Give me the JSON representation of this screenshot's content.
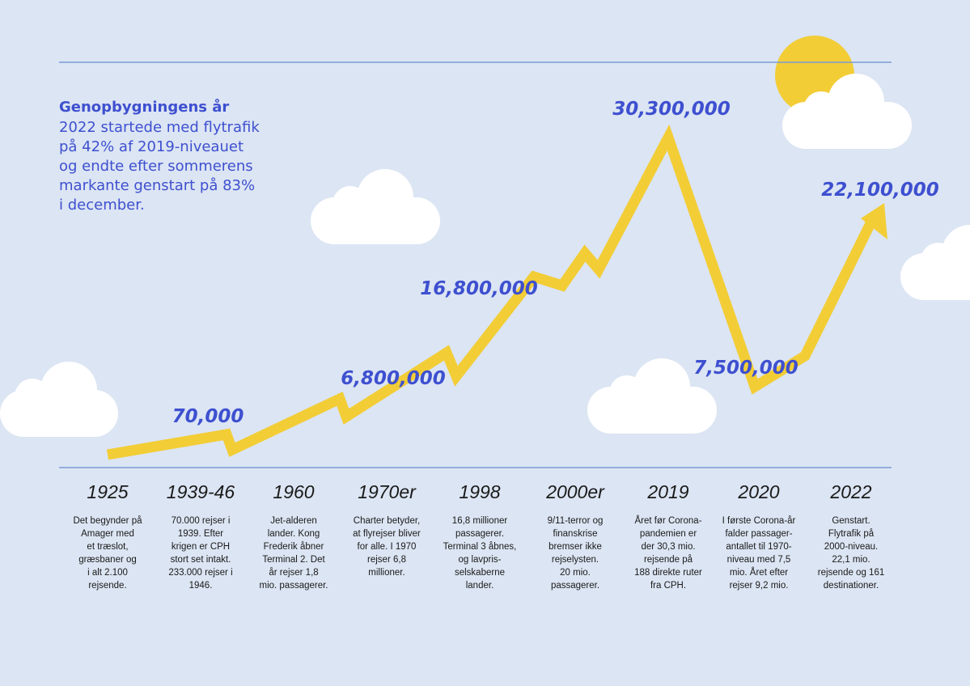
{
  "intro": {
    "title": "Genopbygningens år",
    "lines": [
      "2022 startede med flytrafik",
      "på 42% af 2019-niveauet",
      "og endte efter sommerens",
      "markante genstart på 83%",
      "i december."
    ]
  },
  "milestones": [
    {
      "year": "1925",
      "description": [
        "Det begynder på",
        "Amager med",
        "et træslot,",
        "græsbaner og",
        "i alt 2.100",
        "rejsende."
      ]
    },
    {
      "year": "1939-46",
      "passengers": "70,000",
      "description": [
        "70.000 rejser i",
        "1939. Efter",
        "krigen er CPH",
        "stort set intakt.",
        "233.000 rejser i",
        "1946."
      ]
    },
    {
      "year": "1960",
      "description": [
        "Jet-alderen",
        "lander. Kong",
        "Frederik åbner",
        "Terminal 2. Det",
        "år rejser 1,8",
        "mio. passagerer."
      ]
    },
    {
      "year": "1970er",
      "passengers": "6,800,000",
      "description": [
        "Charter betyder,",
        "at flyrejser bliver",
        "for alle. I 1970",
        "rejser 6,8",
        "millioner."
      ]
    },
    {
      "year": "1998",
      "passengers": "16,800,000",
      "description": [
        "16,8 millioner",
        "passagerer.",
        "Terminal 3 åbnes,",
        "og lavpris-",
        "selskaberne",
        "lander."
      ]
    },
    {
      "year": "2000er",
      "description": [
        "9/11-terror og",
        "finanskrise",
        "bremser ikke",
        "rejselysten.",
        "20 mio.",
        "passagerer."
      ]
    },
    {
      "year": "2019",
      "passengers": "30,300,000",
      "description": [
        "Året før Corona-",
        "pandemien er",
        "der 30,3 mio.",
        "rejsende på",
        "188 direkte ruter",
        "fra CPH."
      ]
    },
    {
      "year": "2020",
      "passengers": "7,500,000",
      "description": [
        "I første Corona-år",
        "falder passager-",
        "antallet til 1970-",
        "niveau med 7,5",
        "mio. Året efter",
        "rejser 9,2 mio."
      ]
    },
    {
      "year": "2022",
      "passengers": "22,100,000",
      "description": [
        "Genstart.",
        "Flytrafik på",
        "2000-niveau.",
        "22,1 mio.",
        "rejsende og 161",
        "destinationer."
      ]
    }
  ]
}
